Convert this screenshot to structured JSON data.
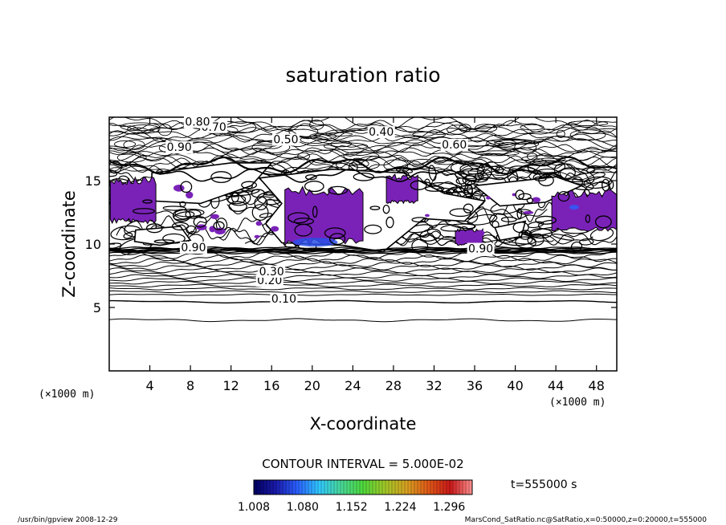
{
  "chart_data": {
    "type": "contour",
    "title": "saturation ratio",
    "xlabel": "X-coordinate",
    "ylabel": "Z-coordinate",
    "x_unit": "(×1000 m)",
    "y_unit": "(×1000 m)",
    "xlim": [
      0,
      50
    ],
    "ylim": [
      0,
      20
    ],
    "x_ticks": [
      4,
      8,
      12,
      16,
      20,
      24,
      28,
      32,
      36,
      40,
      44,
      48
    ],
    "y_ticks": [
      5,
      10,
      15
    ],
    "contour_interval_text": "CONTOUR INTERVAL = 5.000E-02",
    "contour_labels": [
      {
        "text": "0.10",
        "x": 17.2,
        "z": 5.45
      },
      {
        "text": "0.20",
        "x": 15.8,
        "z": 6.9
      },
      {
        "text": "0.30",
        "x": 16.0,
        "z": 7.6
      },
      {
        "text": "0.40",
        "x": 26.8,
        "z": 18.6
      },
      {
        "text": "0.50",
        "x": 17.4,
        "z": 18.0
      },
      {
        "text": "0.60",
        "x": 34.0,
        "z": 17.6
      },
      {
        "text": "0.70",
        "x": 10.3,
        "z": 19.0
      },
      {
        "text": "0.80",
        "x": 8.7,
        "z": 19.4
      },
      {
        "text": "0.90",
        "x": 6.9,
        "z": 17.4
      },
      {
        "text": "0.90",
        "x": 36.6,
        "z": 9.4
      },
      {
        "text": "0.90",
        "x": 8.3,
        "z": 9.5
      }
    ],
    "shaded_regions": [
      {
        "label": "1.008-1.080",
        "x": [
          0.1,
          4.6
        ],
        "z": [
          11.6,
          15.3
        ]
      },
      {
        "label": "1.008-1.080",
        "x": [
          17.3,
          25.0
        ],
        "z": [
          9.9,
          14.6
        ]
      },
      {
        "label": "1.008-1.080",
        "x": [
          27.3,
          30.4
        ],
        "z": [
          13.2,
          15.5
        ]
      },
      {
        "label": "1.008-1.080",
        "x": [
          34.1,
          36.8
        ],
        "z": [
          9.9,
          11.2
        ]
      },
      {
        "label": "1.008-1.080",
        "x": [
          43.6,
          50.0
        ],
        "z": [
          11.0,
          14.3
        ]
      }
    ],
    "colorbar": {
      "ticks": [
        "1.008",
        "1.080",
        "1.152",
        "1.224",
        "1.296"
      ],
      "min": 1.008,
      "max": 1.33,
      "colors": [
        "#000060",
        "#1a1aaa",
        "#2a60ff",
        "#30c8ff",
        "#48d898",
        "#4ed83c",
        "#a0c828",
        "#d8a020",
        "#e05818",
        "#c81818",
        "#ff9090"
      ]
    },
    "time_label": "t=555000 s",
    "footer_left": "/usr/bin/gpview  2008-12-29",
    "footer_right": "MarsCond_SatRatio.nc@SatRatio,x=0:50000,z=0:20000,t=555000",
    "fill_color": "#7a22b8"
  }
}
